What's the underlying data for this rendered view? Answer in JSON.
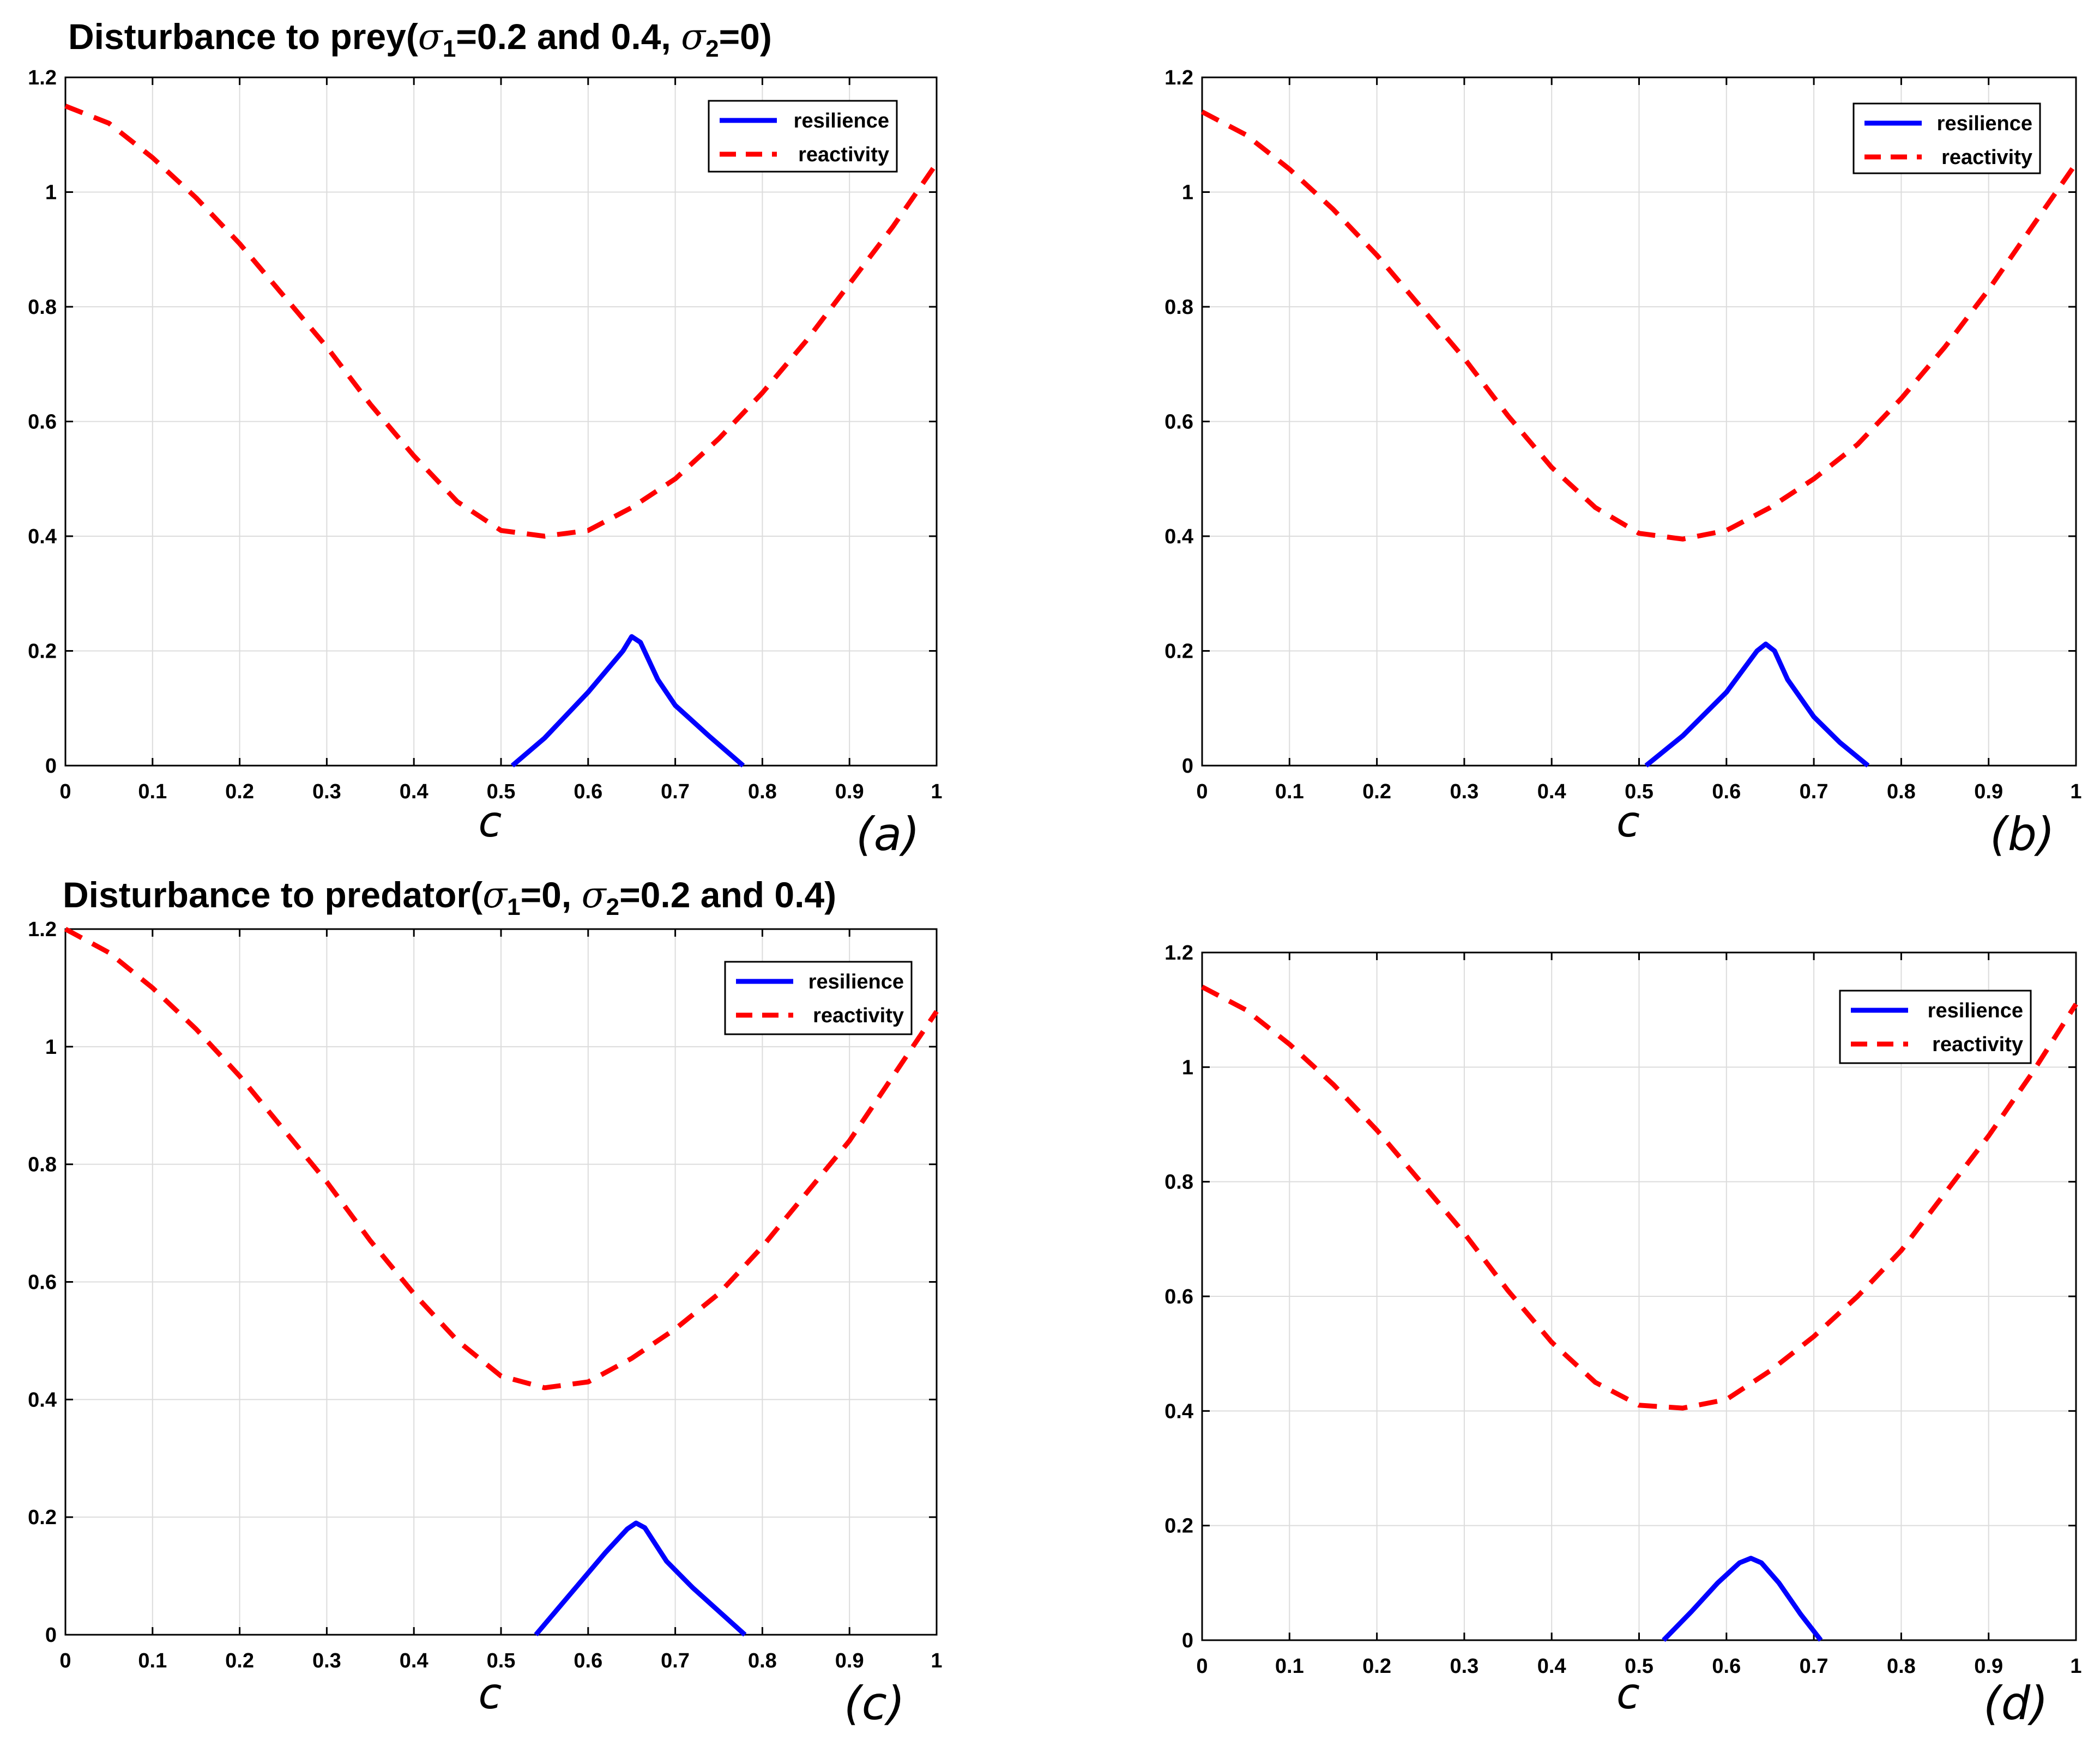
{
  "row_titles": [
    {
      "prefix": "Disturbance to prey(",
      "sym1": "σ",
      "sub1": "1",
      "mid": "=0.2 and 0.4, ",
      "sym2": "σ",
      "sub2": "2",
      "suffix": "=0)"
    },
    {
      "prefix": "Disturbance to predator(",
      "sym1": "σ",
      "sub1": "1",
      "mid": "=0, ",
      "sym2": "σ",
      "sub2": "2",
      "suffix": "=0.2 and 0.4)"
    }
  ],
  "colors": {
    "resilience": "#0000ff",
    "reactivity": "#ff0000",
    "grid": "#dcdcdc",
    "axis": "#000000"
  },
  "chart_data": [
    {
      "type": "line",
      "panel_label": "(a)",
      "xlabel": "c",
      "ylabel": "",
      "xlim": [
        0,
        1
      ],
      "ylim": [
        0,
        1.2
      ],
      "xticks": [
        "0",
        "0.1",
        "0.2",
        "0.3",
        "0.4",
        "0.5",
        "0.6",
        "0.7",
        "0.8",
        "0.9",
        "1"
      ],
      "yticks": [
        "0",
        "0.2",
        "0.4",
        "0.6",
        "0.8",
        "1",
        "1.2"
      ],
      "grid": true,
      "legend": "top-right",
      "series": [
        {
          "name": "resilience",
          "style": "solid",
          "x": [
            0.513,
            0.55,
            0.6,
            0.64,
            0.65,
            0.66,
            0.68,
            0.7,
            0.74,
            0.778
          ],
          "y": [
            0.0,
            0.048,
            0.128,
            0.2,
            0.225,
            0.215,
            0.15,
            0.105,
            0.05,
            0.0
          ]
        },
        {
          "name": "reactivity",
          "style": "dashed",
          "x": [
            0,
            0.05,
            0.1,
            0.15,
            0.2,
            0.25,
            0.3,
            0.35,
            0.4,
            0.45,
            0.5,
            0.55,
            0.6,
            0.65,
            0.7,
            0.75,
            0.8,
            0.85,
            0.9,
            0.95,
            1.0
          ],
          "y": [
            1.15,
            1.12,
            1.06,
            0.99,
            0.91,
            0.82,
            0.73,
            0.63,
            0.54,
            0.46,
            0.41,
            0.4,
            0.41,
            0.45,
            0.5,
            0.57,
            0.65,
            0.74,
            0.84,
            0.94,
            1.05
          ]
        }
      ],
      "legend_entries": [
        "resilience",
        "reactivity"
      ]
    },
    {
      "type": "line",
      "panel_label": "(b)",
      "xlabel": "c",
      "ylabel": "",
      "xlim": [
        0,
        1
      ],
      "ylim": [
        0,
        1.2
      ],
      "xticks": [
        "0",
        "0.1",
        "0.2",
        "0.3",
        "0.4",
        "0.5",
        "0.6",
        "0.7",
        "0.8",
        "0.9",
        "1"
      ],
      "yticks": [
        "0",
        "0.2",
        "0.4",
        "0.6",
        "0.8",
        "1",
        "1.2"
      ],
      "grid": true,
      "legend": "top-right",
      "series": [
        {
          "name": "resilience",
          "style": "solid",
          "x": [
            0.508,
            0.55,
            0.6,
            0.635,
            0.645,
            0.655,
            0.67,
            0.7,
            0.73,
            0.762
          ],
          "y": [
            0.0,
            0.052,
            0.128,
            0.2,
            0.212,
            0.2,
            0.15,
            0.085,
            0.04,
            0.0
          ]
        },
        {
          "name": "reactivity",
          "style": "dashed",
          "x": [
            0,
            0.05,
            0.1,
            0.15,
            0.2,
            0.25,
            0.3,
            0.35,
            0.4,
            0.45,
            0.5,
            0.55,
            0.6,
            0.65,
            0.7,
            0.75,
            0.8,
            0.85,
            0.9,
            0.95,
            1.0
          ],
          "y": [
            1.14,
            1.1,
            1.04,
            0.97,
            0.89,
            0.8,
            0.71,
            0.61,
            0.52,
            0.45,
            0.405,
            0.395,
            0.41,
            0.45,
            0.5,
            0.56,
            0.64,
            0.73,
            0.83,
            0.94,
            1.05
          ]
        }
      ],
      "legend_entries": [
        "resilience",
        "reactivity"
      ]
    },
    {
      "type": "line",
      "panel_label": "(c)",
      "xlabel": "c",
      "ylabel": "",
      "xlim": [
        0,
        1
      ],
      "ylim": [
        0,
        1.2
      ],
      "xticks": [
        "0",
        "0.1",
        "0.2",
        "0.3",
        "0.4",
        "0.5",
        "0.6",
        "0.7",
        "0.8",
        "0.9",
        "1"
      ],
      "yticks": [
        "0",
        "0.2",
        "0.4",
        "0.6",
        "0.8",
        "1",
        "1.2"
      ],
      "grid": true,
      "legend": "top-right",
      "series": [
        {
          "name": "resilience",
          "style": "solid",
          "x": [
            0.54,
            0.58,
            0.62,
            0.645,
            0.655,
            0.665,
            0.69,
            0.72,
            0.75,
            0.78
          ],
          "y": [
            0.0,
            0.07,
            0.14,
            0.18,
            0.19,
            0.182,
            0.125,
            0.08,
            0.04,
            0.0
          ]
        },
        {
          "name": "reactivity",
          "style": "dashed",
          "x": [
            0,
            0.05,
            0.1,
            0.15,
            0.2,
            0.25,
            0.3,
            0.35,
            0.4,
            0.45,
            0.5,
            0.55,
            0.6,
            0.65,
            0.7,
            0.75,
            0.8,
            0.85,
            0.9,
            0.95,
            1.0
          ],
          "y": [
            1.2,
            1.16,
            1.1,
            1.03,
            0.95,
            0.86,
            0.77,
            0.67,
            0.58,
            0.5,
            0.44,
            0.42,
            0.43,
            0.47,
            0.52,
            0.58,
            0.66,
            0.75,
            0.84,
            0.95,
            1.06
          ]
        }
      ],
      "legend_entries": [
        "resilience",
        "reactivity"
      ]
    },
    {
      "type": "line",
      "panel_label": "(d)",
      "xlabel": "c",
      "ylabel": "",
      "xlim": [
        0,
        1
      ],
      "ylim": [
        0,
        1.2
      ],
      "xticks": [
        "0",
        "0.1",
        "0.2",
        "0.3",
        "0.4",
        "0.5",
        "0.6",
        "0.7",
        "0.8",
        "0.9",
        "1"
      ],
      "yticks": [
        "0",
        "0.2",
        "0.4",
        "0.6",
        "0.8",
        "1",
        "1.2"
      ],
      "grid": true,
      "legend": "top-right",
      "series": [
        {
          "name": "resilience",
          "style": "solid",
          "x": [
            0.528,
            0.56,
            0.59,
            0.615,
            0.628,
            0.64,
            0.66,
            0.685,
            0.708
          ],
          "y": [
            0.0,
            0.05,
            0.1,
            0.135,
            0.143,
            0.135,
            0.1,
            0.045,
            0.0
          ]
        },
        {
          "name": "reactivity",
          "style": "dashed",
          "x": [
            0,
            0.05,
            0.1,
            0.15,
            0.2,
            0.25,
            0.3,
            0.35,
            0.4,
            0.45,
            0.5,
            0.55,
            0.6,
            0.65,
            0.7,
            0.75,
            0.8,
            0.85,
            0.9,
            0.95,
            1.0
          ],
          "y": [
            1.14,
            1.1,
            1.04,
            0.97,
            0.89,
            0.8,
            0.71,
            0.61,
            0.52,
            0.45,
            0.41,
            0.405,
            0.42,
            0.47,
            0.53,
            0.6,
            0.68,
            0.78,
            0.88,
            0.99,
            1.11
          ]
        }
      ],
      "legend_entries": [
        "resilience",
        "reactivity"
      ]
    }
  ]
}
